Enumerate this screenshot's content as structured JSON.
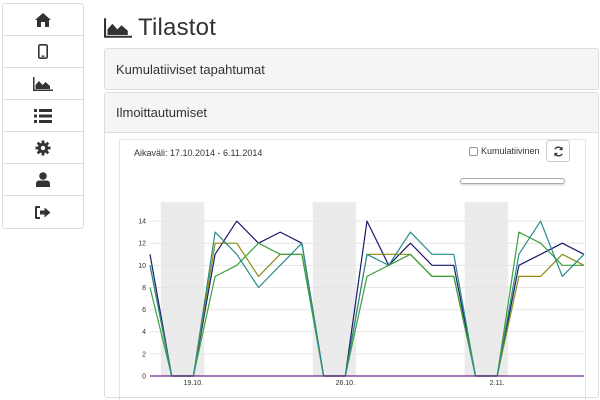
{
  "sidebar": {
    "items": [
      {
        "icon": "home-icon"
      },
      {
        "icon": "mobile-icon"
      },
      {
        "icon": "area-chart-icon"
      },
      {
        "icon": "list-icon"
      },
      {
        "icon": "gear-icon"
      },
      {
        "icon": "user-icon"
      },
      {
        "icon": "sign-out-icon"
      }
    ]
  },
  "header": {
    "title": "Tilastot",
    "icon": "area-chart-icon"
  },
  "panels": {
    "cumulative_events": {
      "title": "Kumulatiiviset tapahtumat"
    },
    "registrations": {
      "title": "Ilmoittautumiset",
      "range_label": "Aikaväli: 17.10.2014 - 6.11.2014",
      "cumulative_label": "Kumulatiivinen",
      "cumulative_checked": false,
      "refresh_icon": "refresh-icon"
    }
  },
  "colors": {
    "navy": "#1a1a6e",
    "olive": "#8c8c14",
    "green": "#3aa03a",
    "teal": "#2a8c8c",
    "purple": "#6a2a8a",
    "weekend_band": "#ebebeb"
  },
  "chart_data": {
    "type": "line",
    "x": [
      "17.10.",
      "18.10.",
      "19.10.",
      "20.10.",
      "21.10.",
      "22.10.",
      "23.10.",
      "24.10.",
      "25.10.",
      "26.10.",
      "27.10.",
      "28.10.",
      "29.10.",
      "30.10.",
      "31.10.",
      "1.11.",
      "2.11.",
      "3.11.",
      "4.11.",
      "5.11.",
      "6.11."
    ],
    "x_tick_labels": [
      "19.10.",
      "26.10.",
      "2.11."
    ],
    "y_ticks": [
      0,
      2,
      4,
      6,
      8,
      10,
      12,
      14
    ],
    "ylim": [
      0,
      15
    ],
    "weekend_bands": [
      [
        "18.10.",
        "19.10."
      ],
      [
        "25.10.",
        "26.10."
      ],
      [
        "1.11.",
        "2.11."
      ]
    ],
    "series": [
      {
        "color": "#1a1a6e",
        "values": [
          11,
          0,
          0,
          11,
          14,
          12,
          13,
          12,
          0,
          0,
          14,
          10,
          12,
          10,
          10,
          0,
          0,
          10,
          11,
          12,
          11
        ]
      },
      {
        "color": "#8c8c14",
        "values": [
          10,
          0,
          0,
          12,
          12,
          9,
          11,
          11,
          0,
          0,
          11,
          11,
          11,
          9,
          9,
          0,
          0,
          9,
          9,
          11,
          10
        ]
      },
      {
        "color": "#3aa03a",
        "values": [
          8,
          0,
          0,
          9,
          10,
          12,
          11,
          11,
          0,
          0,
          9,
          10,
          11,
          9,
          9,
          0,
          0,
          13,
          12,
          10,
          10
        ]
      },
      {
        "color": "#2a8c8c",
        "values": [
          10,
          0,
          0,
          13,
          11,
          8,
          10,
          12,
          0,
          0,
          11,
          10,
          13,
          11,
          11,
          0,
          0,
          11,
          14,
          9,
          11
        ]
      },
      {
        "color": "#6a2a8a",
        "values": [
          0,
          0,
          0,
          0,
          0,
          0,
          0,
          0,
          0,
          0,
          0,
          0,
          0,
          0,
          0,
          0,
          0,
          0,
          0,
          0,
          0
        ]
      }
    ],
    "grid": true
  }
}
